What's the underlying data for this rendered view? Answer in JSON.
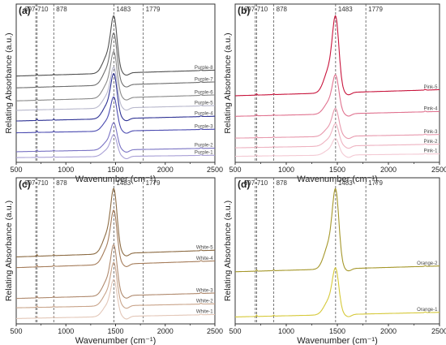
{
  "chart_data": [
    {
      "type": "line",
      "panel_label": "(a)",
      "xlabel": "Wavenumber (cm⁻¹)",
      "ylabel": "Relating Absorbance (a.u.)",
      "xlim": [
        500,
        2500
      ],
      "x_ticks": [
        "500",
        "1000",
        "1500",
        "2000",
        "2500"
      ],
      "reference_lines": [
        {
          "x": 697,
          "label": "697"
        },
        {
          "x": 710,
          "label": "710"
        },
        {
          "x": 878,
          "label": "878"
        },
        {
          "x": 1483,
          "label": "1483"
        },
        {
          "x": 1779,
          "label": "1779"
        }
      ],
      "peak_label_text": "697-710",
      "series": [
        {
          "name": "Purple-1",
          "color": "#a9a0d6",
          "offset": 0.04,
          "peak": 0.16,
          "slope": 0.02
        },
        {
          "name": "Purple-2",
          "color": "#7a73c4",
          "offset": 0.09,
          "peak": 0.2,
          "slope": 0.03
        },
        {
          "name": "Purple-3",
          "color": "#4a4ab0",
          "offset": 0.25,
          "peak": 0.25,
          "slope": 0.03
        },
        {
          "name": "Purple-4",
          "color": "#2e3294",
          "offset": 0.35,
          "peak": 0.33,
          "slope": 0.04
        },
        {
          "name": "Purple-5",
          "color": "#b8b8cc",
          "offset": 0.44,
          "peak": 0.3,
          "slope": 0.04
        },
        {
          "name": "Purple-6",
          "color": "#8a8a8a",
          "offset": 0.52,
          "peak": 0.34,
          "slope": 0.05
        },
        {
          "name": "Purple-7",
          "color": "#6e6e6e",
          "offset": 0.63,
          "peak": 0.38,
          "slope": 0.05
        },
        {
          "name": "Purple-8",
          "color": "#505050",
          "offset": 0.73,
          "peak": 0.42,
          "slope": 0.05
        }
      ]
    },
    {
      "type": "line",
      "panel_label": "(b)",
      "xlabel": "Wavenumber (cm⁻¹)",
      "ylabel": "Relating Absorbance (a.u.)",
      "xlim": [
        500,
        2500
      ],
      "x_ticks": [
        "500",
        "1000",
        "1500",
        "2000",
        "2500"
      ],
      "reference_lines": [
        {
          "x": 697,
          "label": "697"
        },
        {
          "x": 710,
          "label": "710"
        },
        {
          "x": 878,
          "label": "878"
        },
        {
          "x": 1483,
          "label": "1483"
        },
        {
          "x": 1779,
          "label": "1779"
        }
      ],
      "peak_label_text": "697-710",
      "series": [
        {
          "name": "Pink-1",
          "color": "#f3c9d3",
          "offset": 0.05,
          "peak": 0.12,
          "slope": 0.02
        },
        {
          "name": "Pink-2",
          "color": "#eeb2c0",
          "offset": 0.12,
          "peak": 0.16,
          "slope": 0.03
        },
        {
          "name": "Pink-3",
          "color": "#e899ad",
          "offset": 0.2,
          "peak": 0.2,
          "slope": 0.03
        },
        {
          "name": "Pink-4",
          "color": "#e0728f",
          "offset": 0.38,
          "peak": 0.28,
          "slope": 0.04
        },
        {
          "name": "Pink-5",
          "color": "#c8143c",
          "offset": 0.55,
          "peak": 0.55,
          "slope": 0.05
        }
      ]
    },
    {
      "type": "line",
      "panel_label": "(c)",
      "xlabel": "Wavenumber (cm⁻¹)",
      "ylabel": "Relating Absorbance (a.u.)",
      "xlim": [
        500,
        2500
      ],
      "x_ticks": [
        "500",
        "1000",
        "1500",
        "2000",
        "2500"
      ],
      "reference_lines": [
        {
          "x": 697,
          "label": "697"
        },
        {
          "x": 710,
          "label": "710"
        },
        {
          "x": 878,
          "label": "878"
        },
        {
          "x": 1483,
          "label": "1483"
        },
        {
          "x": 1779,
          "label": "1779"
        }
      ],
      "peak_label_text": "697-710",
      "series": [
        {
          "name": "White-1",
          "color": "#e3c7b8",
          "offset": 0.04,
          "peak": 0.24,
          "slope": 0.03
        },
        {
          "name": "White-2",
          "color": "#c9a48a",
          "offset": 0.12,
          "peak": 0.28,
          "slope": 0.03
        },
        {
          "name": "White-3",
          "color": "#b08a6e",
          "offset": 0.19,
          "peak": 0.33,
          "slope": 0.04
        },
        {
          "name": "White-4",
          "color": "#a57c5a",
          "offset": 0.42,
          "peak": 0.35,
          "slope": 0.05
        },
        {
          "name": "White-5",
          "color": "#8c6b43",
          "offset": 0.5,
          "peak": 0.42,
          "slope": 0.05
        }
      ]
    },
    {
      "type": "line",
      "panel_label": "(d)",
      "xlabel": "Wavenumber (cm⁻¹)",
      "ylabel": "Relating Absorbance (a.u.)",
      "xlim": [
        500,
        2500
      ],
      "x_ticks": [
        "500",
        "1000",
        "1500",
        "2000",
        "2500"
      ],
      "reference_lines": [
        {
          "x": 697,
          "label": "697"
        },
        {
          "x": 710,
          "label": "710"
        },
        {
          "x": 878,
          "label": "878"
        },
        {
          "x": 1483,
          "label": "1483"
        },
        {
          "x": 1779,
          "label": "1779"
        }
      ],
      "peak_label_text": "697-710",
      "series": [
        {
          "name": "Orange-1",
          "color": "#d6c93a",
          "offset": 0.06,
          "peak": 0.35,
          "slope": 0.04
        },
        {
          "name": "Orange-2",
          "color": "#a5972a",
          "offset": 0.45,
          "peak": 0.6,
          "slope": 0.05
        }
      ]
    }
  ]
}
